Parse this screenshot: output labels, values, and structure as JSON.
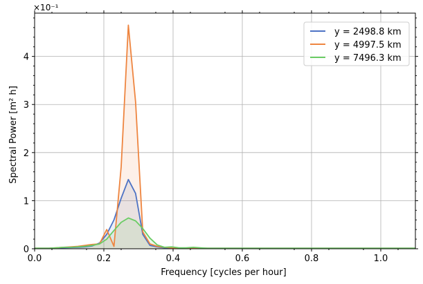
{
  "chart_data": {
    "type": "line",
    "xlabel": "Frequency [cycles per hour]",
    "ylabel": "Spectral Power [m² h]",
    "offset_text": "×10⁻¹",
    "xlim": [
      0.0,
      1.1
    ],
    "ylim": [
      0.0,
      4.9
    ],
    "xticks": [
      0.0,
      0.2,
      0.4,
      0.6,
      0.8,
      1.0
    ],
    "xtick_labels": [
      "0.0",
      "0.2",
      "0.4",
      "0.6",
      "0.8",
      "1.0"
    ],
    "yticks": [
      0,
      1,
      2,
      3,
      4
    ],
    "ytick_labels": [
      "0",
      "1",
      "2",
      "3",
      "4"
    ],
    "grid": true,
    "legend_position": "top-right",
    "x": [
      0.0,
      0.0208,
      0.0417,
      0.0625,
      0.0833,
      0.1042,
      0.125,
      0.1458,
      0.1667,
      0.1875,
      0.2083,
      0.2292,
      0.25,
      0.2708,
      0.2917,
      0.3125,
      0.3333,
      0.3542,
      0.375,
      0.3958,
      0.4167,
      0.4375,
      0.4583,
      0.4792,
      0.5,
      0.5417,
      0.5833,
      0.625,
      0.6667,
      0.7083,
      0.75,
      0.7917,
      0.8333,
      0.875,
      0.9167,
      0.9583,
      1.0,
      1.0417,
      1.0833,
      1.1
    ],
    "series": [
      {
        "name": "y = 2498.8 km",
        "color": "#4c72c4",
        "values": [
          0.01,
          0.01,
          0.01,
          0.015,
          0.02,
          0.025,
          0.03,
          0.04,
          0.06,
          0.12,
          0.3,
          0.6,
          1.05,
          1.44,
          1.15,
          0.3,
          0.07,
          0.04,
          0.02,
          0.015,
          0.01,
          0.01,
          0.01,
          0.01,
          0.01,
          0.01,
          0.01,
          0.01,
          0.01,
          0.01,
          0.01,
          0.01,
          0.01,
          0.01,
          0.01,
          0.01,
          0.01,
          0.01,
          0.01,
          0.01
        ]
      },
      {
        "name": "y = 4997.5 km",
        "color": "#ee8540",
        "values": [
          0.01,
          0.01,
          0.01,
          0.02,
          0.03,
          0.04,
          0.05,
          0.07,
          0.09,
          0.1,
          0.4,
          0.05,
          1.7,
          4.65,
          3.05,
          0.35,
          0.1,
          0.05,
          0.03,
          0.02,
          0.01,
          0.01,
          0.01,
          0.01,
          0.01,
          0.01,
          0.01,
          0.01,
          0.01,
          0.01,
          0.01,
          0.01,
          0.01,
          0.01,
          0.01,
          0.01,
          0.01,
          0.01,
          0.01,
          0.01
        ]
      },
      {
        "name": "y = 7496.3 km",
        "color": "#6acc64",
        "values": [
          0.01,
          0.01,
          0.01,
          0.02,
          0.03,
          0.03,
          0.04,
          0.05,
          0.07,
          0.1,
          0.2,
          0.38,
          0.55,
          0.64,
          0.58,
          0.42,
          0.22,
          0.08,
          0.03,
          0.04,
          0.02,
          0.02,
          0.03,
          0.02,
          0.01,
          0.01,
          0.01,
          0.01,
          0.01,
          0.01,
          0.01,
          0.01,
          0.01,
          0.01,
          0.01,
          0.01,
          0.01,
          0.01,
          0.01,
          0.01
        ]
      }
    ]
  }
}
